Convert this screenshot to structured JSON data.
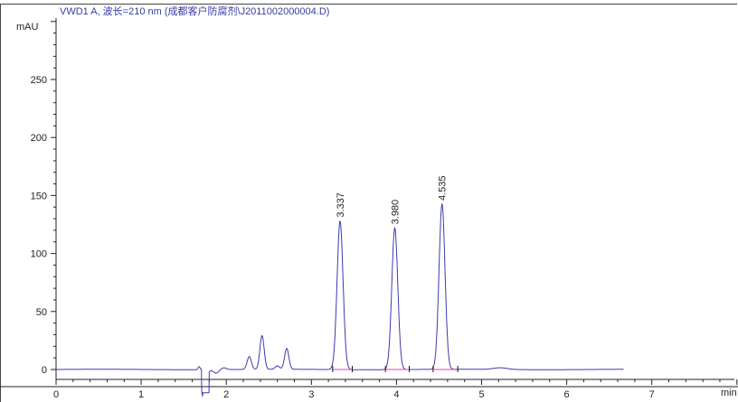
{
  "chart_data": {
    "type": "line",
    "title": "VWD1 A, 波长=210 nm (成都客户防腐剂\\J2011002000004.D)",
    "ylabel": "mAU",
    "xlabel": "min",
    "xlim": [
      0,
      8
    ],
    "ylim": [
      -8.5,
      300
    ],
    "x_ticks": [
      "0",
      "1",
      "2",
      "3",
      "4",
      "5",
      "6",
      "7"
    ],
    "y_ticks": [
      "0",
      "50",
      "100",
      "150",
      "200",
      "250"
    ],
    "grid": false,
    "trace_end_min": 6.67,
    "series_color": "#3b3bb0",
    "baseline_color": "#e040a0",
    "labeled_peaks": [
      {
        "rt": 3.337,
        "label": "3.337",
        "height": 128,
        "start": 3.25,
        "end": 3.48
      },
      {
        "rt": 3.98,
        "label": "3.980",
        "height": 122,
        "start": 3.87,
        "end": 4.15
      },
      {
        "rt": 4.535,
        "label": "4.535",
        "height": 142.5,
        "start": 4.43,
        "end": 4.72
      }
    ],
    "minor_peaks": [
      {
        "rt": 2.27,
        "height": 11
      },
      {
        "rt": 2.42,
        "height": 29
      },
      {
        "rt": 2.6,
        "height": 3
      },
      {
        "rt": 2.71,
        "height": 18
      },
      {
        "rt": 5.22,
        "height": 1.5
      }
    ],
    "disturbance": {
      "rt_up": 1.68,
      "up": 2.5,
      "rt_down": 1.72,
      "down": -25,
      "rt_recover": 1.95
    }
  }
}
